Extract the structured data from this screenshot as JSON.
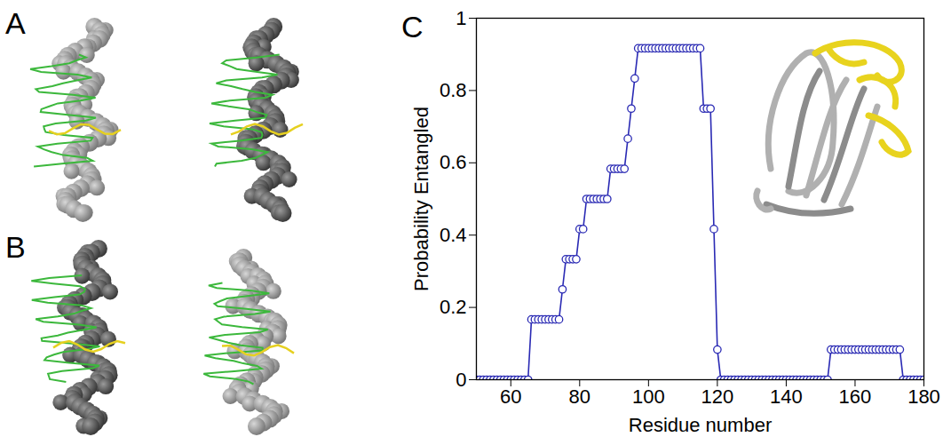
{
  "panel_labels": [
    "A",
    "B",
    "C"
  ],
  "chart_data": {
    "type": "line",
    "xlabel": "Residue number",
    "ylabel": "Probability Entangled",
    "xlim": [
      50,
      180
    ],
    "xticks": [
      60,
      80,
      100,
      120,
      140,
      160,
      180
    ],
    "ylim": [
      0,
      1
    ],
    "yticks": [
      0,
      0.2,
      0.4,
      0.6,
      0.8,
      1
    ],
    "grid": false,
    "x": [
      50,
      51,
      52,
      53,
      54,
      55,
      56,
      57,
      58,
      59,
      60,
      61,
      62,
      63,
      64,
      65,
      66,
      67,
      68,
      69,
      70,
      71,
      72,
      73,
      74,
      75,
      76,
      77,
      78,
      79,
      80,
      81,
      82,
      83,
      84,
      85,
      86,
      87,
      88,
      89,
      90,
      91,
      92,
      93,
      94,
      95,
      96,
      97,
      98,
      99,
      100,
      101,
      102,
      103,
      104,
      105,
      106,
      107,
      108,
      109,
      110,
      111,
      112,
      113,
      114,
      115,
      116,
      117,
      118,
      119,
      120,
      121,
      122,
      123,
      124,
      125,
      126,
      127,
      128,
      129,
      130,
      131,
      132,
      133,
      134,
      135,
      136,
      137,
      138,
      139,
      140,
      141,
      142,
      143,
      144,
      145,
      146,
      147,
      148,
      149,
      150,
      151,
      152,
      153,
      154,
      155,
      156,
      157,
      158,
      159,
      160,
      161,
      162,
      163,
      164,
      165,
      166,
      167,
      168,
      169,
      170,
      171,
      172,
      173,
      174,
      175,
      176,
      177,
      178,
      179,
      180
    ],
    "series": [
      {
        "name": "Probability Entangled",
        "color": "#2a2ab4",
        "marker": "open_circle",
        "line_style": "solid",
        "values": [
          0,
          0,
          0,
          0,
          0,
          0,
          0,
          0,
          0,
          0,
          0,
          0,
          0,
          0,
          0,
          0,
          0.1667,
          0.1667,
          0.1667,
          0.1667,
          0.1667,
          0.1667,
          0.1667,
          0.1667,
          0.1667,
          0.25,
          0.3333,
          0.3333,
          0.3333,
          0.3333,
          0.4167,
          0.4167,
          0.5,
          0.5,
          0.5,
          0.5,
          0.5,
          0.5,
          0.5,
          0.5833,
          0.5833,
          0.5833,
          0.5833,
          0.5833,
          0.6667,
          0.75,
          0.8333,
          0.9167,
          0.9167,
          0.9167,
          0.9167,
          0.9167,
          0.9167,
          0.9167,
          0.9167,
          0.9167,
          0.9167,
          0.9167,
          0.9167,
          0.9167,
          0.9167,
          0.9167,
          0.9167,
          0.9167,
          0.9167,
          0.9167,
          0.75,
          0.75,
          0.75,
          0.4167,
          0.0833,
          0,
          0,
          0,
          0,
          0,
          0,
          0,
          0,
          0,
          0,
          0,
          0,
          0,
          0,
          0,
          0,
          0,
          0,
          0,
          0,
          0,
          0,
          0,
          0,
          0,
          0,
          0,
          0,
          0,
          0,
          0,
          0,
          0.0833,
          0.0833,
          0.0833,
          0.0833,
          0.0833,
          0.0833,
          0.0833,
          0.0833,
          0.0833,
          0.0833,
          0.0833,
          0.0833,
          0.0833,
          0.0833,
          0.0833,
          0.0833,
          0.0833,
          0.0833,
          0.0833,
          0.0833,
          0.0833,
          0,
          0,
          0,
          0,
          0,
          0,
          0
        ]
      }
    ]
  }
}
